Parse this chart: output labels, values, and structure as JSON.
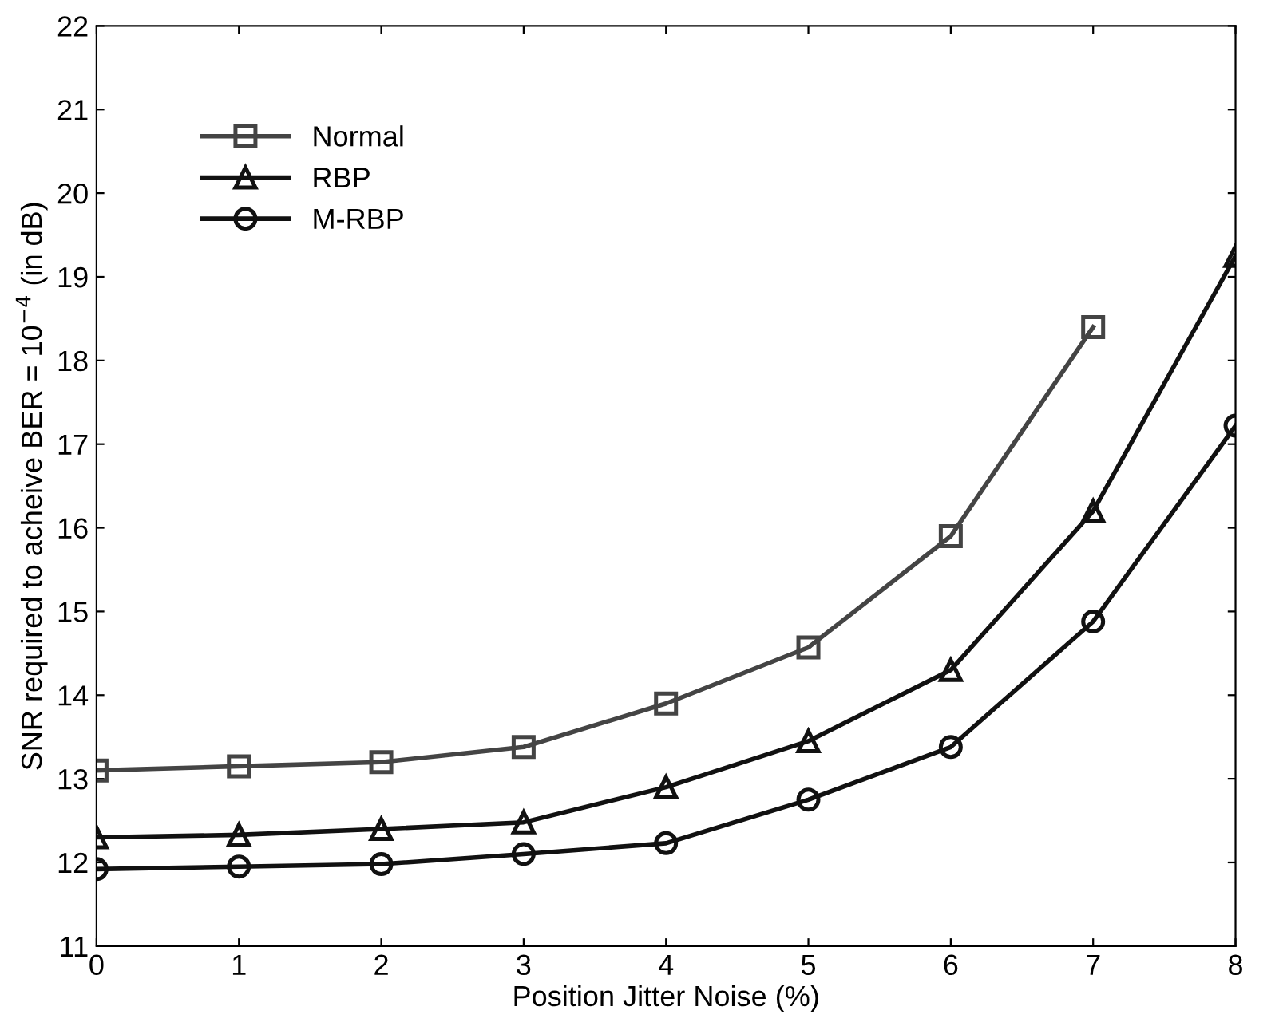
{
  "chart_data": {
    "type": "line",
    "xlabel": "Position Jitter Noise (%)",
    "ylabel": "SNR required to acheive BER = 10$^{−4}$ (in dB)",
    "x": [
      0,
      1,
      2,
      3,
      4,
      5,
      6,
      7,
      8
    ],
    "xlim": [
      0,
      8
    ],
    "xticks": [
      0,
      1,
      2,
      3,
      4,
      5,
      6,
      7,
      8
    ],
    "ylim": [
      11,
      22
    ],
    "yticks": [
      11,
      12,
      13,
      14,
      15,
      16,
      17,
      18,
      19,
      20,
      21,
      22
    ],
    "grid": false,
    "legend": "top left",
    "line_style": "solid",
    "series": [
      {
        "name": "Normal",
        "color": "#444444",
        "marker": "square",
        "values": [
          13.1,
          13.15,
          13.2,
          13.38,
          13.9,
          14.57,
          15.9,
          18.4,
          null
        ]
      },
      {
        "name": "RBP",
        "color": "#111111",
        "marker": "triangle",
        "values": [
          12.3,
          12.33,
          12.4,
          12.48,
          12.9,
          13.45,
          14.3,
          16.2,
          19.25
        ]
      },
      {
        "name": "M-RBP",
        "color": "#111111",
        "marker": "circle",
        "values": [
          11.92,
          11.95,
          11.98,
          12.1,
          12.23,
          12.75,
          13.38,
          14.88,
          17.22
        ]
      }
    ]
  }
}
